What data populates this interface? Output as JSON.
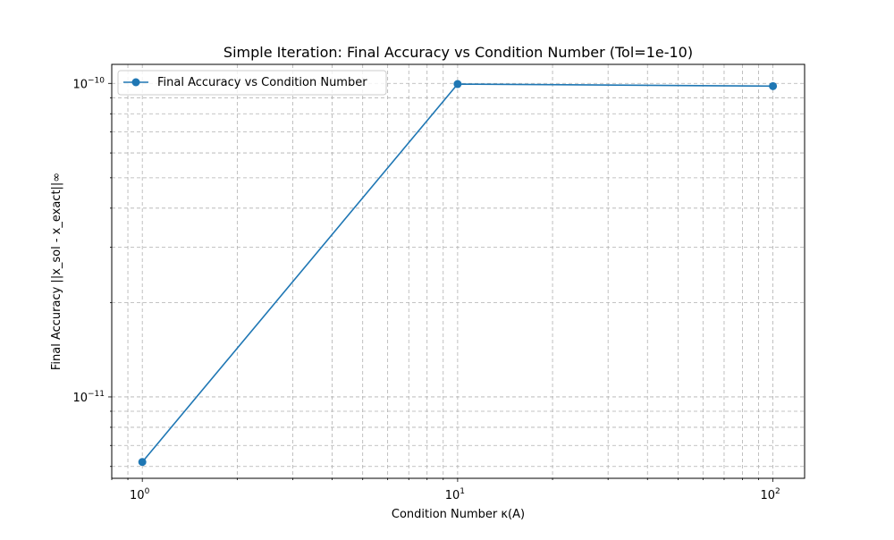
{
  "chart_data": {
    "type": "line",
    "title": "Simple Iteration: Final Accuracy vs Condition Number (Tol=1e-10)",
    "xlabel": "Condition Number κ(A)",
    "ylabel": "Final Accuracy ||x_sol - x_exact||∞",
    "xscale": "log",
    "yscale": "log",
    "xlim": [
      0.8,
      126
    ],
    "ylim": [
      5.5e-12,
      1.15e-10
    ],
    "grid": true,
    "legend_placement": "upper-left",
    "x_ticks": [
      {
        "value": 1,
        "base": "10",
        "exp": "0"
      },
      {
        "value": 10,
        "base": "10",
        "exp": "1"
      },
      {
        "value": 100,
        "base": "10",
        "exp": "2"
      }
    ],
    "y_ticks": [
      {
        "value": 1e-11,
        "base": "10",
        "exp": "−11"
      },
      {
        "value": 1e-10,
        "base": "10",
        "exp": "−10"
      }
    ],
    "series": [
      {
        "name": "Final Accuracy vs Condition Number",
        "color": "#1f77b4",
        "marker": "circle",
        "x": [
          1,
          10,
          100
        ],
        "y": [
          6.2e-12,
          9.95e-11,
          9.8e-11
        ]
      }
    ]
  }
}
